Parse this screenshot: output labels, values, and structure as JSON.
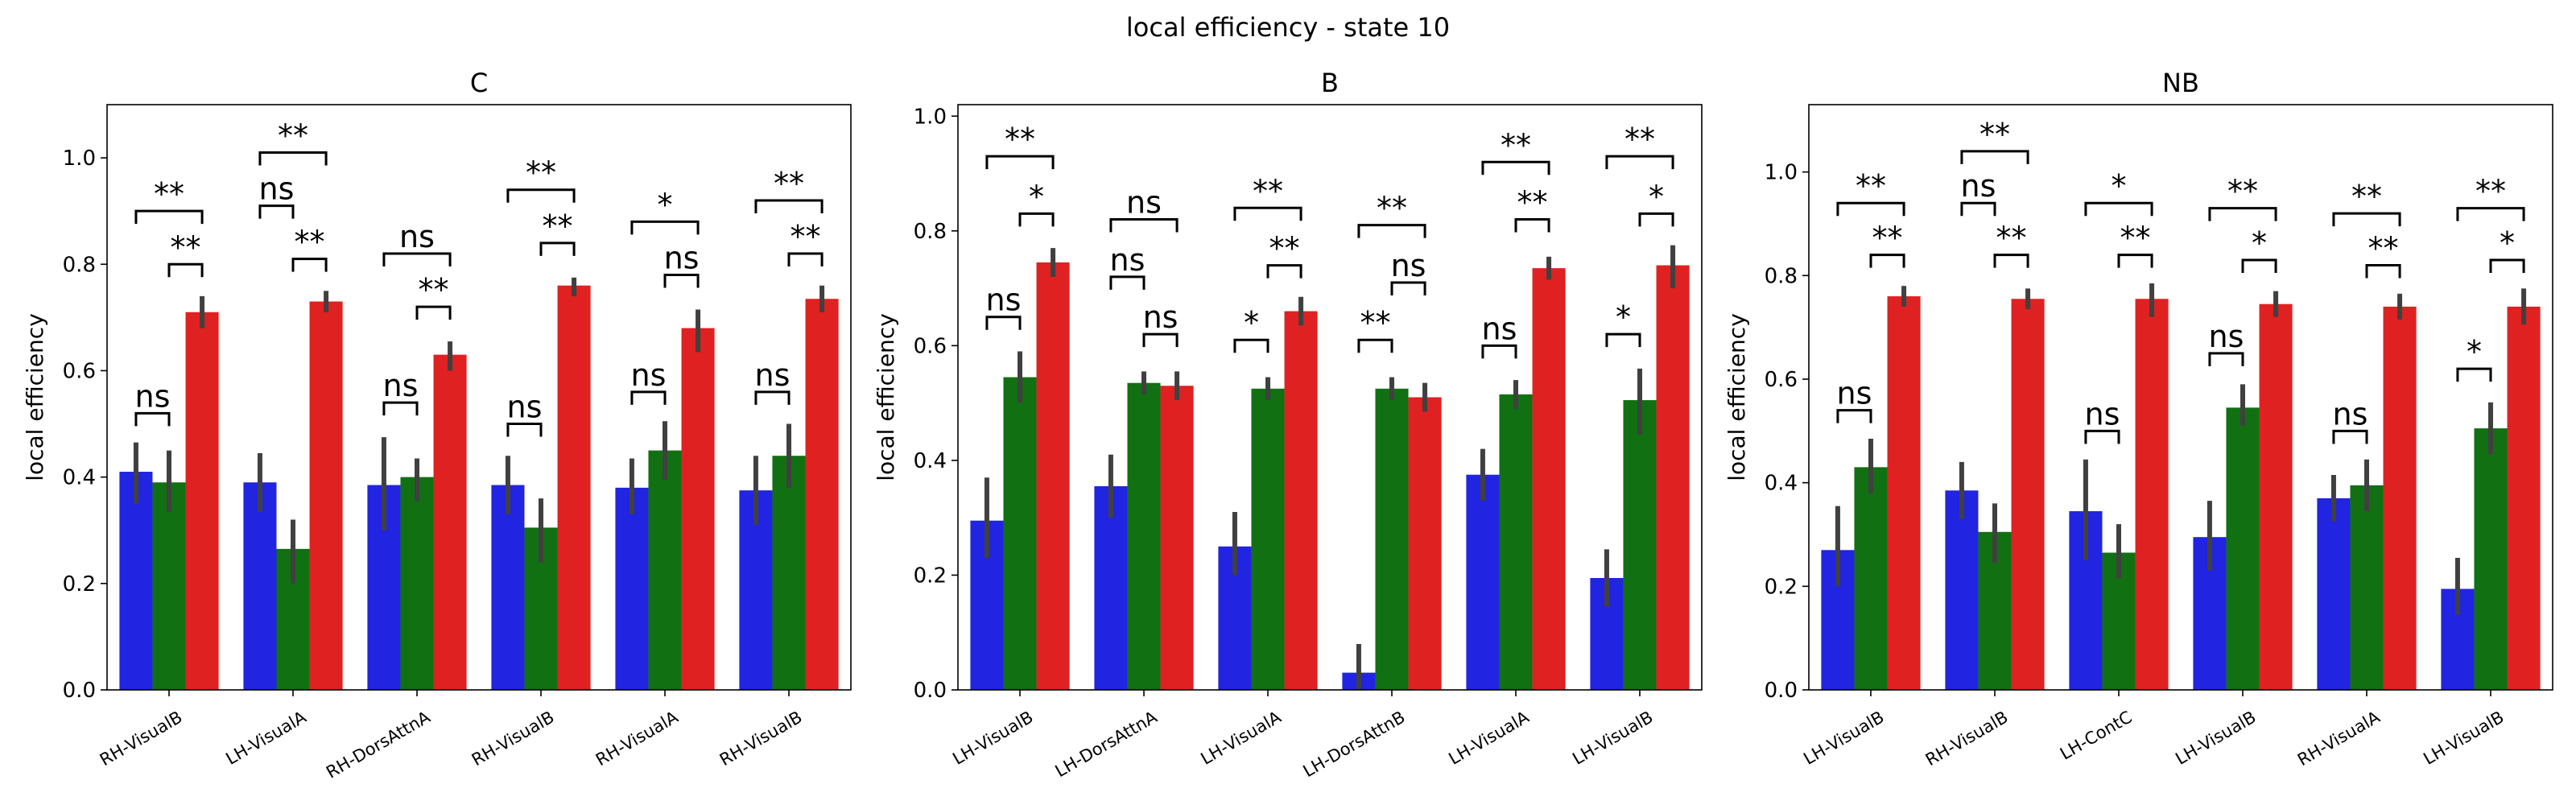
{
  "figure": {
    "title": "local efficiency - state 10"
  },
  "colors": {
    "blue": "#2124e0",
    "green": "#117011",
    "red": "#e02121",
    "error": "#404040"
  },
  "chart_data": [
    {
      "type": "bar",
      "title": "C",
      "ylabel": "local efficiency",
      "xlabel": "",
      "ylim": [
        0,
        1.1
      ],
      "yticks": [
        "0.0",
        "0.2",
        "0.4",
        "0.6",
        "0.8",
        "1.0"
      ],
      "legend": "none",
      "grid": false,
      "categories": [
        "RH-VisualB",
        "LH-VisualA",
        "RH-DorsAttnA",
        "RH-VisualB",
        "RH-VisualA",
        "RH-VisualB"
      ],
      "series": [
        {
          "color": "blue",
          "values": [
            0.41,
            0.39,
            0.385,
            0.385,
            0.38,
            0.375
          ],
          "err_low": [
            0.35,
            0.335,
            0.3,
            0.33,
            0.33,
            0.31
          ],
          "err_high": [
            0.465,
            0.445,
            0.475,
            0.44,
            0.435,
            0.44
          ]
        },
        {
          "color": "green",
          "values": [
            0.39,
            0.265,
            0.4,
            0.305,
            0.45,
            0.44
          ],
          "err_low": [
            0.335,
            0.2,
            0.355,
            0.24,
            0.395,
            0.38
          ],
          "err_high": [
            0.45,
            0.32,
            0.435,
            0.36,
            0.505,
            0.5
          ]
        },
        {
          "color": "red",
          "values": [
            0.71,
            0.73,
            0.63,
            0.76,
            0.68,
            0.735
          ],
          "err_low": [
            0.68,
            0.71,
            0.6,
            0.74,
            0.635,
            0.71
          ],
          "err_high": [
            0.74,
            0.75,
            0.655,
            0.775,
            0.715,
            0.76
          ]
        }
      ],
      "annotations": [
        {
          "cat": 0,
          "from": 0,
          "to": 1,
          "y": 0.52,
          "label": "ns"
        },
        {
          "cat": 0,
          "from": 1,
          "to": 2,
          "y": 0.8,
          "label": "**"
        },
        {
          "cat": 0,
          "from": 0,
          "to": 2,
          "y": 0.9,
          "label": "**"
        },
        {
          "cat": 1,
          "from": 1,
          "to": 2,
          "y": 0.81,
          "label": "**"
        },
        {
          "cat": 1,
          "from": 0,
          "to": 1,
          "y": 0.91,
          "label": "ns"
        },
        {
          "cat": 1,
          "from": 0,
          "to": 2,
          "y": 1.01,
          "label": "**"
        },
        {
          "cat": 2,
          "from": 0,
          "to": 1,
          "y": 0.54,
          "label": "ns"
        },
        {
          "cat": 2,
          "from": 1,
          "to": 2,
          "y": 0.72,
          "label": "**"
        },
        {
          "cat": 2,
          "from": 0,
          "to": 2,
          "y": 0.82,
          "label": "ns"
        },
        {
          "cat": 3,
          "from": 0,
          "to": 1,
          "y": 0.5,
          "label": "ns"
        },
        {
          "cat": 3,
          "from": 1,
          "to": 2,
          "y": 0.84,
          "label": "**"
        },
        {
          "cat": 3,
          "from": 0,
          "to": 2,
          "y": 0.94,
          "label": "**"
        },
        {
          "cat": 4,
          "from": 0,
          "to": 1,
          "y": 0.56,
          "label": "ns"
        },
        {
          "cat": 4,
          "from": 1,
          "to": 2,
          "y": 0.78,
          "label": "ns"
        },
        {
          "cat": 4,
          "from": 0,
          "to": 2,
          "y": 0.88,
          "label": "*"
        },
        {
          "cat": 5,
          "from": 0,
          "to": 1,
          "y": 0.56,
          "label": "ns"
        },
        {
          "cat": 5,
          "from": 1,
          "to": 2,
          "y": 0.82,
          "label": "**"
        },
        {
          "cat": 5,
          "from": 0,
          "to": 2,
          "y": 0.92,
          "label": "**"
        }
      ]
    },
    {
      "type": "bar",
      "title": "B",
      "ylabel": "local efficiency",
      "xlabel": "",
      "ylim": [
        0,
        1.02
      ],
      "yticks": [
        "0.0",
        "0.2",
        "0.4",
        "0.6",
        "0.8",
        "1.0"
      ],
      "legend": "none",
      "grid": false,
      "categories": [
        "LH-VisualB",
        "LH-DorsAttnA",
        "LH-VisualA",
        "LH-DorsAttnB",
        "LH-VisualA",
        "LH-VisualB"
      ],
      "series": [
        {
          "color": "blue",
          "values": [
            0.295,
            0.355,
            0.25,
            0.03,
            0.375,
            0.195
          ],
          "err_low": [
            0.23,
            0.3,
            0.2,
            0.0,
            0.33,
            0.145
          ],
          "err_high": [
            0.37,
            0.41,
            0.31,
            0.08,
            0.42,
            0.245
          ]
        },
        {
          "color": "green",
          "values": [
            0.545,
            0.535,
            0.525,
            0.525,
            0.515,
            0.505
          ],
          "err_low": [
            0.5,
            0.515,
            0.505,
            0.505,
            0.49,
            0.445
          ],
          "err_high": [
            0.59,
            0.555,
            0.545,
            0.545,
            0.54,
            0.56
          ]
        },
        {
          "color": "red",
          "values": [
            0.745,
            0.53,
            0.66,
            0.51,
            0.735,
            0.74
          ],
          "err_low": [
            0.72,
            0.505,
            0.635,
            0.485,
            0.715,
            0.7
          ],
          "err_high": [
            0.77,
            0.555,
            0.685,
            0.535,
            0.755,
            0.775
          ]
        }
      ],
      "annotations": [
        {
          "cat": 0,
          "from": 0,
          "to": 1,
          "y": 0.65,
          "label": "ns"
        },
        {
          "cat": 0,
          "from": 1,
          "to": 2,
          "y": 0.83,
          "label": "*"
        },
        {
          "cat": 0,
          "from": 0,
          "to": 2,
          "y": 0.93,
          "label": "**"
        },
        {
          "cat": 1,
          "from": 0,
          "to": 1,
          "y": 0.72,
          "label": "ns"
        },
        {
          "cat": 1,
          "from": 1,
          "to": 2,
          "y": 0.62,
          "label": "ns"
        },
        {
          "cat": 1,
          "from": 0,
          "to": 2,
          "y": 0.82,
          "label": "ns"
        },
        {
          "cat": 2,
          "from": 0,
          "to": 1,
          "y": 0.61,
          "label": "*"
        },
        {
          "cat": 2,
          "from": 1,
          "to": 2,
          "y": 0.74,
          "label": "**"
        },
        {
          "cat": 2,
          "from": 0,
          "to": 2,
          "y": 0.84,
          "label": "**"
        },
        {
          "cat": 3,
          "from": 0,
          "to": 1,
          "y": 0.61,
          "label": "**"
        },
        {
          "cat": 3,
          "from": 1,
          "to": 2,
          "y": 0.71,
          "label": "ns"
        },
        {
          "cat": 3,
          "from": 0,
          "to": 2,
          "y": 0.81,
          "label": "**"
        },
        {
          "cat": 4,
          "from": 0,
          "to": 1,
          "y": 0.6,
          "label": "ns"
        },
        {
          "cat": 4,
          "from": 1,
          "to": 2,
          "y": 0.82,
          "label": "**"
        },
        {
          "cat": 4,
          "from": 0,
          "to": 2,
          "y": 0.92,
          "label": "**"
        },
        {
          "cat": 5,
          "from": 0,
          "to": 1,
          "y": 0.62,
          "label": "*"
        },
        {
          "cat": 5,
          "from": 1,
          "to": 2,
          "y": 0.83,
          "label": "*"
        },
        {
          "cat": 5,
          "from": 0,
          "to": 2,
          "y": 0.93,
          "label": "**"
        }
      ]
    },
    {
      "type": "bar",
      "title": "NB",
      "ylabel": "local efficiency",
      "xlabel": "",
      "ylim": [
        0,
        1.13
      ],
      "yticks": [
        "0.0",
        "0.2",
        "0.4",
        "0.6",
        "0.8",
        "1.0"
      ],
      "legend": "none",
      "grid": false,
      "categories": [
        "LH-VisualB",
        "RH-VisualB",
        "LH-ContC",
        "LH-VisualB",
        "RH-VisualA",
        "LH-VisualB"
      ],
      "series": [
        {
          "color": "blue",
          "values": [
            0.27,
            0.385,
            0.345,
            0.295,
            0.37,
            0.195
          ],
          "err_low": [
            0.2,
            0.33,
            0.25,
            0.23,
            0.325,
            0.145
          ],
          "err_high": [
            0.355,
            0.44,
            0.445,
            0.365,
            0.415,
            0.255
          ]
        },
        {
          "color": "green",
          "values": [
            0.43,
            0.305,
            0.265,
            0.545,
            0.395,
            0.505
          ],
          "err_low": [
            0.38,
            0.245,
            0.215,
            0.51,
            0.345,
            0.455
          ],
          "err_high": [
            0.485,
            0.36,
            0.32,
            0.59,
            0.445,
            0.555
          ]
        },
        {
          "color": "red",
          "values": [
            0.76,
            0.755,
            0.755,
            0.745,
            0.74,
            0.74
          ],
          "err_low": [
            0.74,
            0.735,
            0.72,
            0.72,
            0.715,
            0.705
          ],
          "err_high": [
            0.78,
            0.775,
            0.785,
            0.77,
            0.765,
            0.775
          ]
        }
      ],
      "annotations": [
        {
          "cat": 0,
          "from": 0,
          "to": 1,
          "y": 0.54,
          "label": "ns"
        },
        {
          "cat": 0,
          "from": 1,
          "to": 2,
          "y": 0.84,
          "label": "**"
        },
        {
          "cat": 0,
          "from": 0,
          "to": 2,
          "y": 0.94,
          "label": "**"
        },
        {
          "cat": 1,
          "from": 1,
          "to": 2,
          "y": 0.84,
          "label": "**"
        },
        {
          "cat": 1,
          "from": 0,
          "to": 1,
          "y": 0.94,
          "label": "ns"
        },
        {
          "cat": 1,
          "from": 0,
          "to": 2,
          "y": 1.04,
          "label": "**"
        },
        {
          "cat": 2,
          "from": 0,
          "to": 1,
          "y": 0.5,
          "label": "ns"
        },
        {
          "cat": 2,
          "from": 1,
          "to": 2,
          "y": 0.84,
          "label": "**"
        },
        {
          "cat": 2,
          "from": 0,
          "to": 2,
          "y": 0.94,
          "label": "*"
        },
        {
          "cat": 3,
          "from": 0,
          "to": 1,
          "y": 0.65,
          "label": "ns"
        },
        {
          "cat": 3,
          "from": 1,
          "to": 2,
          "y": 0.83,
          "label": "*"
        },
        {
          "cat": 3,
          "from": 0,
          "to": 2,
          "y": 0.93,
          "label": "**"
        },
        {
          "cat": 4,
          "from": 0,
          "to": 1,
          "y": 0.5,
          "label": "ns"
        },
        {
          "cat": 4,
          "from": 1,
          "to": 2,
          "y": 0.82,
          "label": "**"
        },
        {
          "cat": 4,
          "from": 0,
          "to": 2,
          "y": 0.92,
          "label": "**"
        },
        {
          "cat": 5,
          "from": 0,
          "to": 1,
          "y": 0.62,
          "label": "*"
        },
        {
          "cat": 5,
          "from": 1,
          "to": 2,
          "y": 0.83,
          "label": "*"
        },
        {
          "cat": 5,
          "from": 0,
          "to": 2,
          "y": 0.93,
          "label": "**"
        }
      ]
    }
  ]
}
